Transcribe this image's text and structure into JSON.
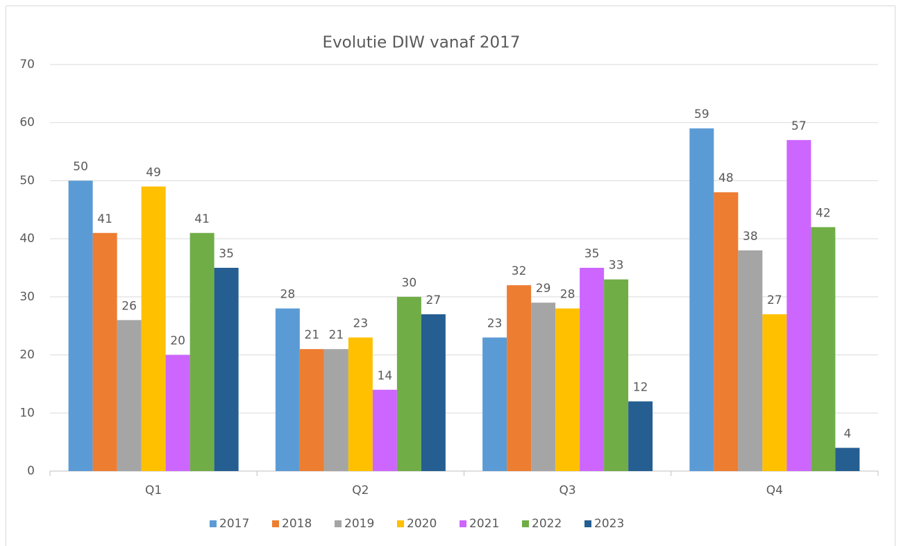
{
  "chart_data": {
    "type": "bar",
    "title": "Evolutie DIW vanaf 2017",
    "categories": [
      "Q1",
      "Q2",
      "Q3",
      "Q4"
    ],
    "series": [
      {
        "name": "2017",
        "color": "#5b9bd5",
        "values": [
          50,
          28,
          23,
          59
        ]
      },
      {
        "name": "2018",
        "color": "#ed7d31",
        "values": [
          41,
          21,
          32,
          48
        ]
      },
      {
        "name": "2019",
        "color": "#a5a5a5",
        "values": [
          26,
          21,
          29,
          38
        ]
      },
      {
        "name": "2020",
        "color": "#ffc000",
        "values": [
          49,
          23,
          28,
          27
        ]
      },
      {
        "name": "2021",
        "color": "#cc66ff",
        "values": [
          20,
          14,
          35,
          57
        ]
      },
      {
        "name": "2022",
        "color": "#70ad47",
        "values": [
          41,
          30,
          33,
          42
        ]
      },
      {
        "name": "2023",
        "color": "#255e91",
        "values": [
          35,
          27,
          12,
          4
        ]
      }
    ],
    "ylim": [
      0,
      70
    ],
    "yticks": [
      0,
      10,
      20,
      30,
      40,
      50,
      60,
      70
    ],
    "grid": true,
    "legend": "bottom"
  }
}
